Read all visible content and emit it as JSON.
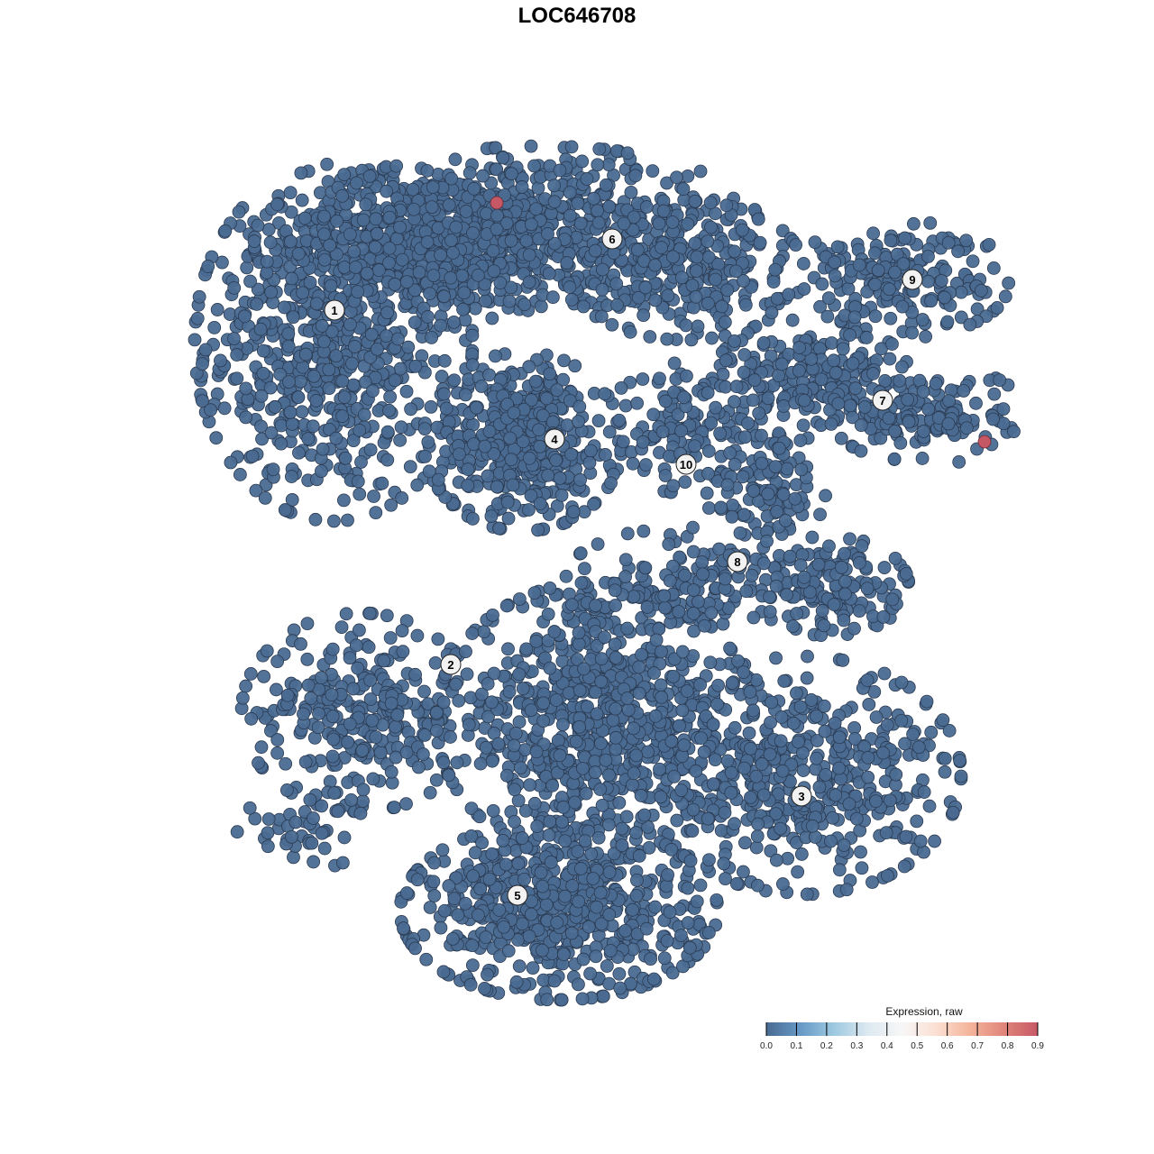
{
  "chart_data": {
    "type": "scatter",
    "title": "LOC646708",
    "xlabel": "",
    "ylabel": "",
    "xlim": [
      -45,
      45
    ],
    "ylim": [
      -46,
      46
    ],
    "grid": false,
    "point_color_low": "#4a6a91",
    "point_stroke": "#2b3b52",
    "clusters": [
      {
        "label": "1",
        "label_pos": [
          -26.9,
          29.6
        ],
        "blobs": [
          {
            "center": [
              -27,
              26
            ],
            "spread": [
              7,
              9
            ],
            "n": 700
          },
          {
            "center": [
              -16,
              37
            ],
            "spread": [
              9,
              4
            ],
            "n": 500
          }
        ]
      },
      {
        "label": "2",
        "label_pos": [
          -14,
          -9.7
        ],
        "blobs": [
          {
            "center": [
              -24,
              -15
            ],
            "spread": [
              6,
              5
            ],
            "n": 300
          }
        ]
      },
      {
        "label": "3",
        "label_pos": [
          24.9,
          -24.3
        ],
        "blobs": [
          {
            "center": [
              25,
              -22
            ],
            "spread": [
              8,
              6
            ],
            "n": 500
          }
        ]
      },
      {
        "label": "4",
        "label_pos": [
          -2.5,
          15.3
        ],
        "blobs": [
          {
            "center": [
              -6,
              15
            ],
            "spread": [
              5,
              4.5
            ],
            "n": 450
          }
        ]
      },
      {
        "label": "5",
        "label_pos": [
          -6.6,
          -35.3
        ],
        "blobs": [
          {
            "center": [
              2,
              -16
            ],
            "spread": [
              8,
              7
            ],
            "n": 800
          },
          {
            "center": [
              -2,
              -37
            ],
            "spread": [
              8,
              4.5
            ],
            "n": 600
          }
        ]
      },
      {
        "label": "6",
        "label_pos": [
          3.9,
          37.5
        ],
        "blobs": [
          {
            "center": [
              -4,
              39
            ],
            "spread": [
              11,
              4
            ],
            "n": 500
          },
          {
            "center": [
              12,
              34
            ],
            "spread": [
              6,
              3.5
            ],
            "n": 250
          }
        ]
      },
      {
        "label": "7",
        "label_pos": [
          33.9,
          19.6
        ],
        "blobs": [
          {
            "center": [
              26,
              22
            ],
            "spread": [
              5,
              3
            ],
            "n": 200
          },
          {
            "center": [
              39,
              18
            ],
            "spread": [
              5,
              2.5
            ],
            "n": 150
          }
        ]
      },
      {
        "label": "8",
        "label_pos": [
          17.8,
          1.7
        ],
        "blobs": [
          {
            "center": [
              21,
              10
            ],
            "spread": [
              3,
              4
            ],
            "n": 120
          },
          {
            "center": [
              28,
              -1
            ],
            "spread": [
              4,
              2.5
            ],
            "n": 150
          },
          {
            "center": [
              12,
              0
            ],
            "spread": [
              6,
              2.5
            ],
            "n": 120
          }
        ]
      },
      {
        "label": "9",
        "label_pos": [
          37.2,
          33
        ],
        "blobs": [
          {
            "center": [
              35,
              33
            ],
            "spread": [
              6,
              3
            ],
            "n": 200
          }
        ]
      },
      {
        "label": "10",
        "label_pos": [
          12.1,
          12.5
        ],
        "blobs": [
          {
            "center": [
              12,
              17
            ],
            "spread": [
              4.5,
              3.5
            ],
            "n": 120
          }
        ]
      },
      {
        "label": "",
        "label_pos": null,
        "blobs": [
          {
            "center": [
              -30,
              -28
            ],
            "spread": [
              3.5,
              2
            ],
            "n": 40
          }
        ]
      }
    ],
    "highlighted_points": [
      {
        "x": -8.9,
        "y": 41.5,
        "value": 0.9
      },
      {
        "x": 45.2,
        "y": 15,
        "value": 0.9
      }
    ],
    "legend": {
      "title": "Expression, raw",
      "placement": "bottom-right",
      "ticks": [
        "0.0",
        "0.1",
        "0.2",
        "0.3",
        "0.4",
        "0.5",
        "0.6",
        "0.7",
        "0.8",
        "0.9"
      ],
      "colors": [
        "#4a6a91",
        "#6699c6",
        "#9ec9e0",
        "#dde9f1",
        "#f7f7f7",
        "#fbe0d3",
        "#f4b49b",
        "#e0857a",
        "#c65866"
      ]
    }
  }
}
